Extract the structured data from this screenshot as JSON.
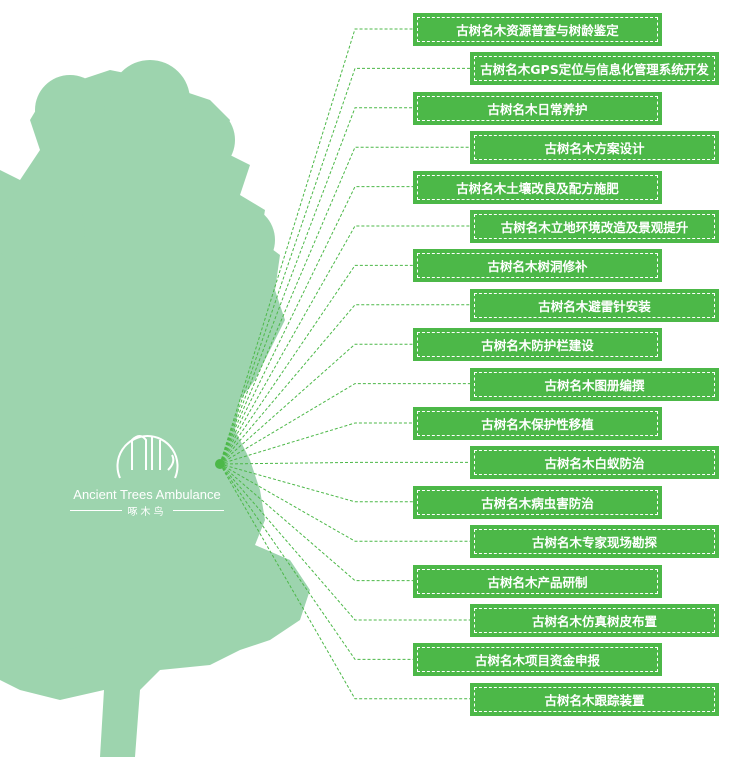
{
  "logo": {
    "name": "Ancient Trees Ambulance",
    "subtitle": "啄木鸟"
  },
  "colors": {
    "box": "#4cb848",
    "tree": "#9dd4ae",
    "line": "#4cb848"
  },
  "items": [
    "古树名木资源普查与树龄鉴定",
    "古树名木GPS定位与信息化管理系统开发",
    "古树名木日常养护",
    "古树名木方案设计",
    "古树名木土壤改良及配方施肥",
    "古树名木立地环境改造及景观提升",
    "古树名木树洞修补",
    "古树名木避雷针安装",
    "古树名木防护栏建设",
    "古树名木图册编撰",
    "古树名木保护性移植",
    "古树名木白蚁防治",
    "古树名木病虫害防治",
    "古树名木专家现场勘探",
    "古树名木产品研制",
    "古树名木仿真树皮布置",
    "古树名木项目资金申报",
    "古树名木跟踪装置"
  ]
}
